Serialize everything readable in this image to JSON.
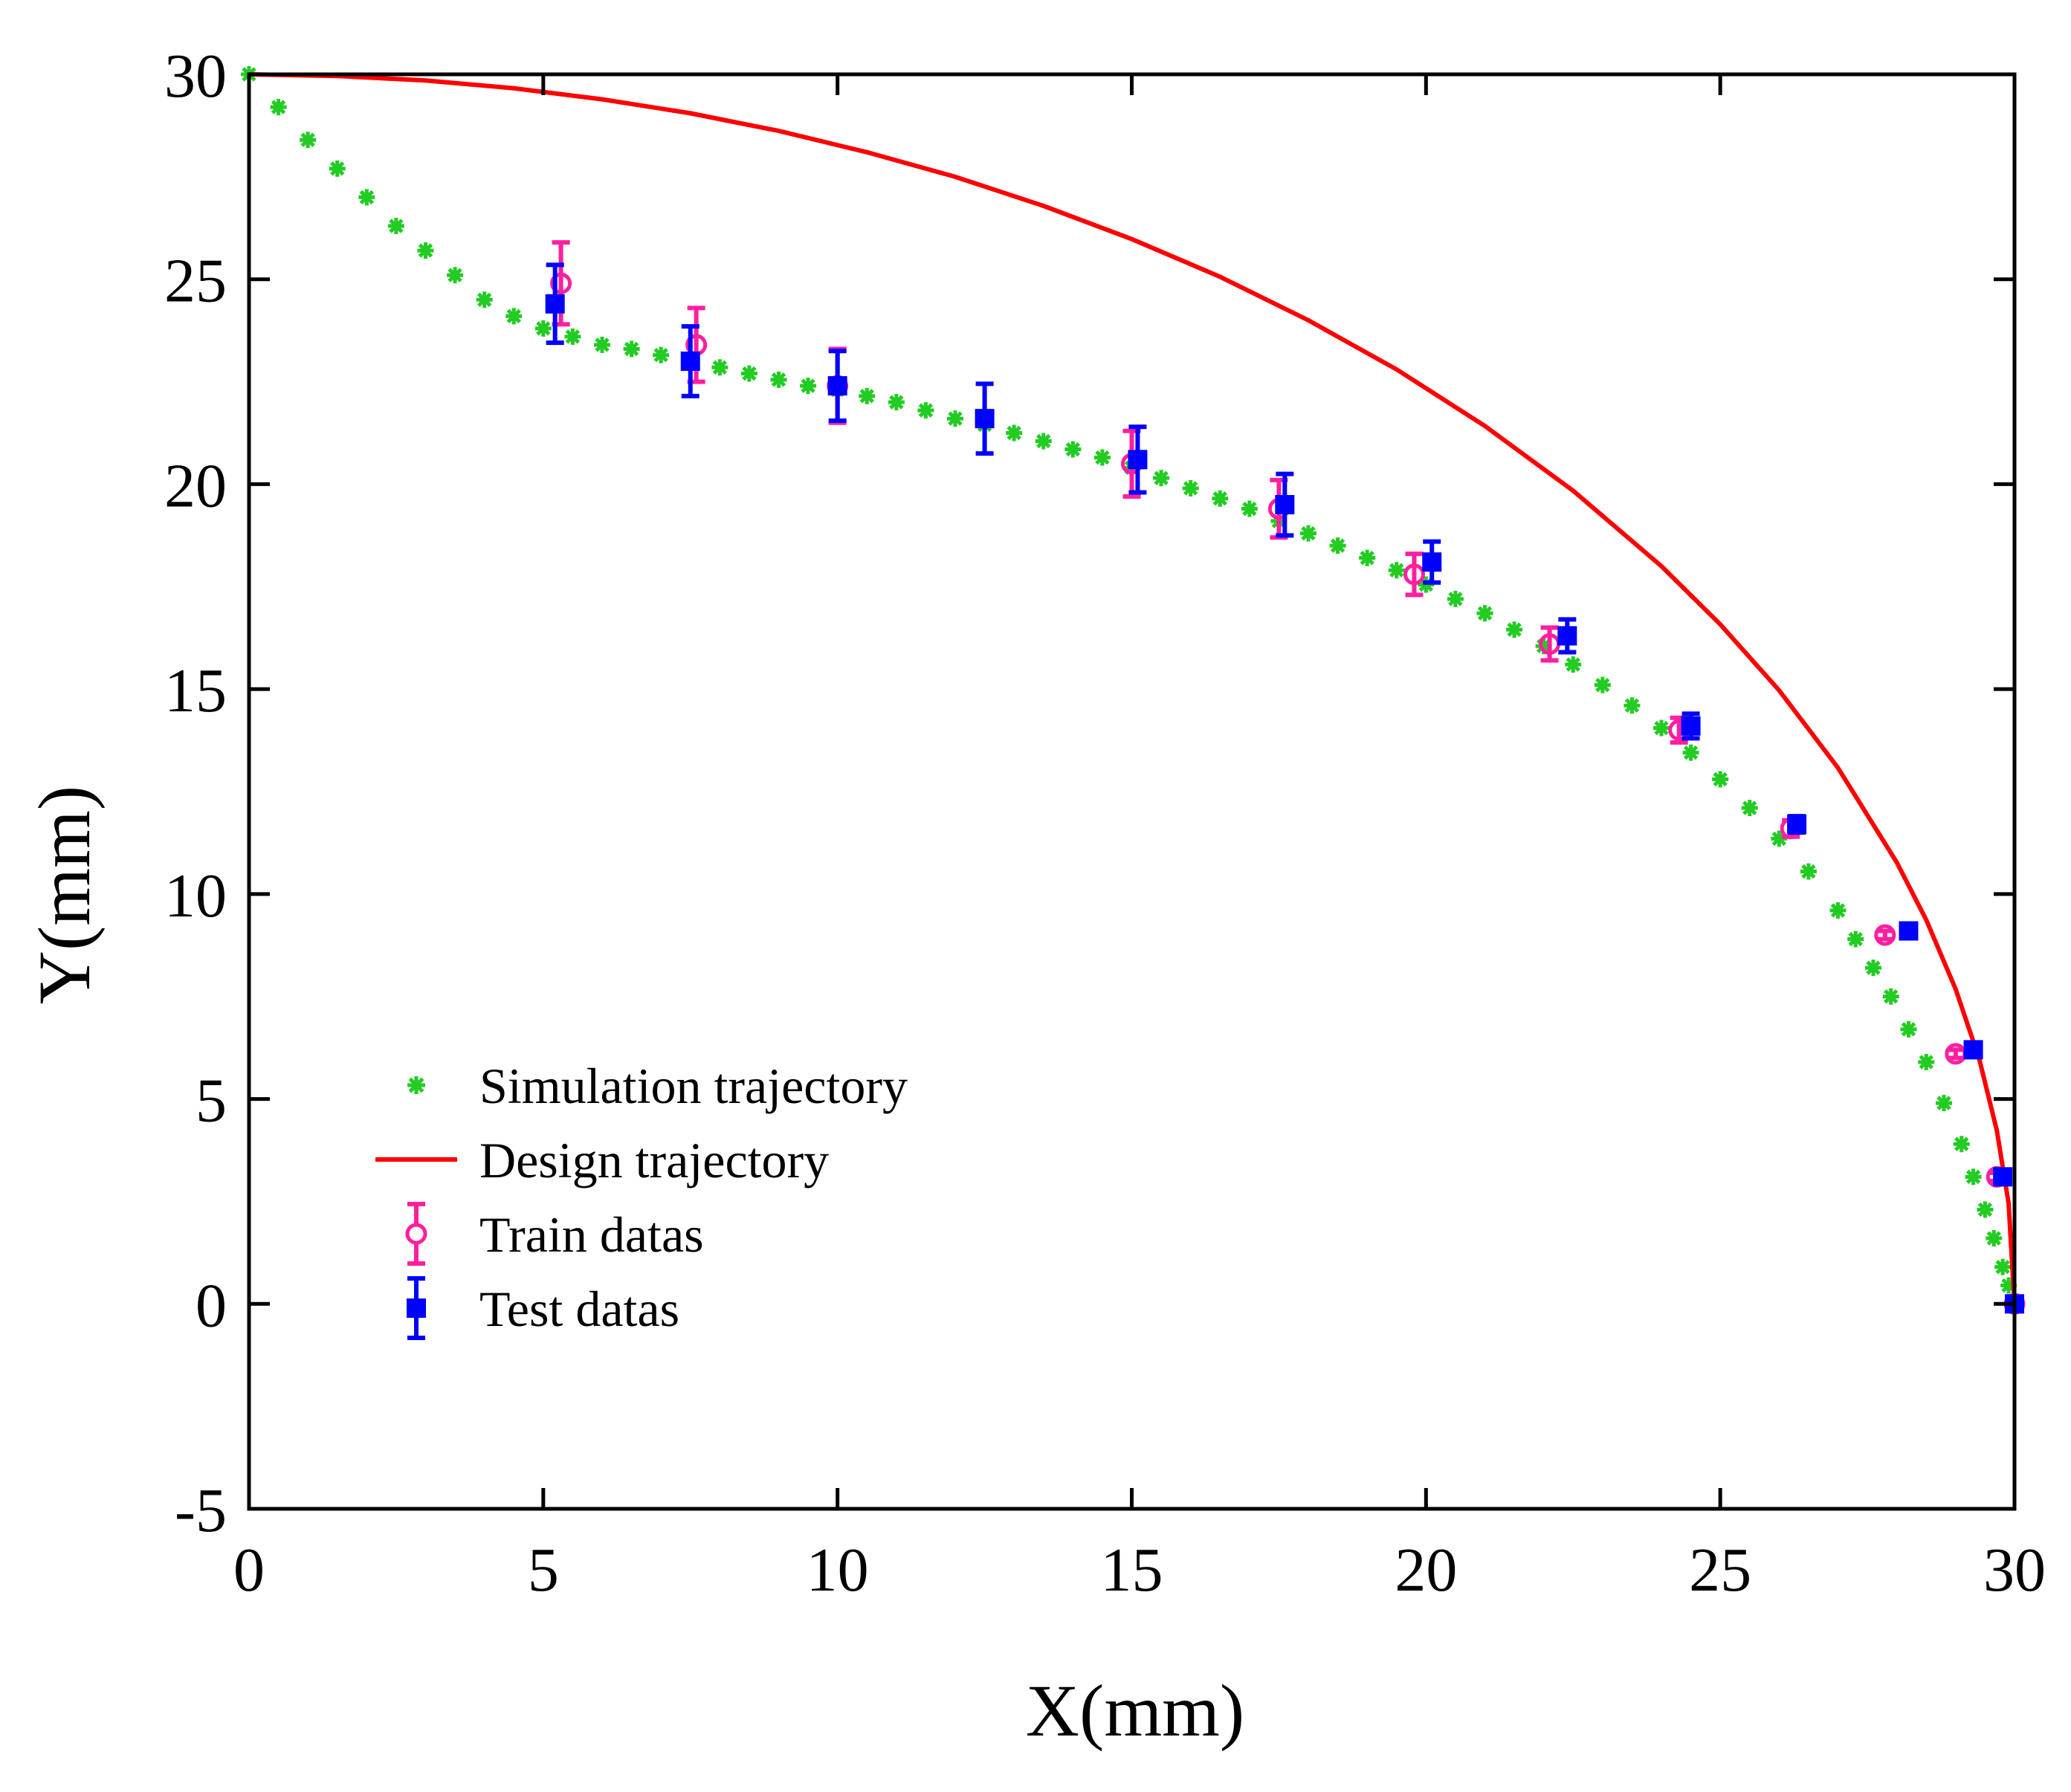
{
  "chart_data": {
    "type": "scatter",
    "title": "",
    "xlabel": "X(mm)",
    "ylabel": "Y(mm)",
    "xlim": [
      0,
      30
    ],
    "ylim": [
      -5,
      30
    ],
    "xticks": [
      0,
      5,
      10,
      15,
      20,
      25,
      30
    ],
    "yticks": [
      -5,
      0,
      5,
      10,
      15,
      20,
      25,
      30
    ],
    "xtick_labels": [
      "0",
      "5",
      "10",
      "15",
      "20",
      "25",
      "30"
    ],
    "ytick_labels": [
      "-5",
      "0",
      "5",
      "10",
      "15",
      "20",
      "25",
      "30"
    ],
    "grid": false,
    "legend_position": "lower-left",
    "series": [
      {
        "name": "Simulation trajectory",
        "kind": "markers",
        "marker": "star",
        "color": "#22cc22",
        "x": [
          0,
          0.5,
          1,
          1.5,
          2,
          2.5,
          3,
          3.5,
          4,
          4.5,
          5,
          5.5,
          6,
          6.5,
          7,
          7.5,
          8,
          8.5,
          9,
          9.5,
          10,
          10.5,
          11,
          11.5,
          12,
          12.5,
          13,
          13.5,
          14,
          14.5,
          15,
          15.5,
          16,
          16.5,
          17,
          17.5,
          18,
          18.5,
          19,
          19.5,
          20,
          20.5,
          21,
          21.5,
          22,
          22.5,
          23,
          23.5,
          24,
          24.5,
          25,
          25.5,
          26,
          26.5,
          27,
          27.3,
          27.6,
          27.9,
          28.2,
          28.5,
          28.8,
          29.1,
          29.3,
          29.5,
          29.65,
          29.8,
          29.9,
          30
        ],
        "y": [
          30,
          29.2,
          28.4,
          27.7,
          27,
          26.3,
          25.7,
          25.1,
          24.5,
          24.1,
          23.8,
          23.6,
          23.4,
          23.3,
          23.15,
          23,
          22.85,
          22.7,
          22.55,
          22.4,
          22.3,
          22.15,
          22,
          21.8,
          21.6,
          21.45,
          21.25,
          21.05,
          20.85,
          20.65,
          20.4,
          20.15,
          19.9,
          19.65,
          19.4,
          19.1,
          18.8,
          18.5,
          18.2,
          17.9,
          17.55,
          17.2,
          16.85,
          16.45,
          16.05,
          15.6,
          15.1,
          14.6,
          14.05,
          13.45,
          12.8,
          12.1,
          11.35,
          10.55,
          9.6,
          8.9,
          8.2,
          7.5,
          6.7,
          5.9,
          4.9,
          3.9,
          3.1,
          2.3,
          1.6,
          0.9,
          0.45,
          0
        ]
      },
      {
        "name": "Design trajectory",
        "kind": "line",
        "color": "#ff0000",
        "x": [
          0,
          1.5,
          3,
          4.5,
          6,
          7.5,
          9,
          10.5,
          12,
          13.5,
          15,
          16.5,
          18,
          19.5,
          21,
          22.5,
          24,
          25,
          26,
          27,
          28,
          28.5,
          29,
          29.4,
          29.7,
          29.9,
          30
        ],
        "y": [
          30,
          29.96,
          29.85,
          29.66,
          29.39,
          29.05,
          28.62,
          28.1,
          27.5,
          26.79,
          25.98,
          25.06,
          24,
          22.8,
          21.42,
          19.84,
          18,
          16.58,
          14.97,
          13.08,
          10.77,
          9.37,
          7.68,
          5.98,
          4.23,
          2.45,
          0
        ]
      },
      {
        "name": "Train datas",
        "kind": "errorbar",
        "marker": "circle",
        "color": "#ff1f9f",
        "x": [
          5.3,
          7.6,
          10,
          15,
          17.5,
          19.8,
          22.1,
          24.3,
          26.2,
          27.8,
          29,
          29.7,
          30
        ],
        "y": [
          24.9,
          23.4,
          22.4,
          20.5,
          19.4,
          17.8,
          16.1,
          14,
          11.6,
          9,
          6.1,
          3.1,
          0
        ],
        "err": [
          1,
          0.9,
          0.9,
          0.8,
          0.7,
          0.5,
          0.4,
          0.3,
          0.2,
          0.1,
          0.1,
          0.1,
          0.1
        ]
      },
      {
        "name": "Test datas",
        "kind": "errorbar",
        "marker": "square",
        "color": "#0000ff",
        "x": [
          5.2,
          7.5,
          10,
          12.5,
          15.1,
          17.6,
          20.1,
          22.4,
          24.5,
          26.3,
          28.2,
          29.3,
          29.8,
          30
        ],
        "y": [
          24.4,
          23,
          22.4,
          21.6,
          20.6,
          19.5,
          18.1,
          16.3,
          14.1,
          11.7,
          9.1,
          6.2,
          3.1,
          0
        ],
        "err": [
          0.95,
          0.85,
          0.85,
          0.85,
          0.8,
          0.75,
          0.5,
          0.4,
          0.3,
          0.2,
          0.1,
          0.1,
          0.1,
          0.1
        ]
      }
    ]
  }
}
